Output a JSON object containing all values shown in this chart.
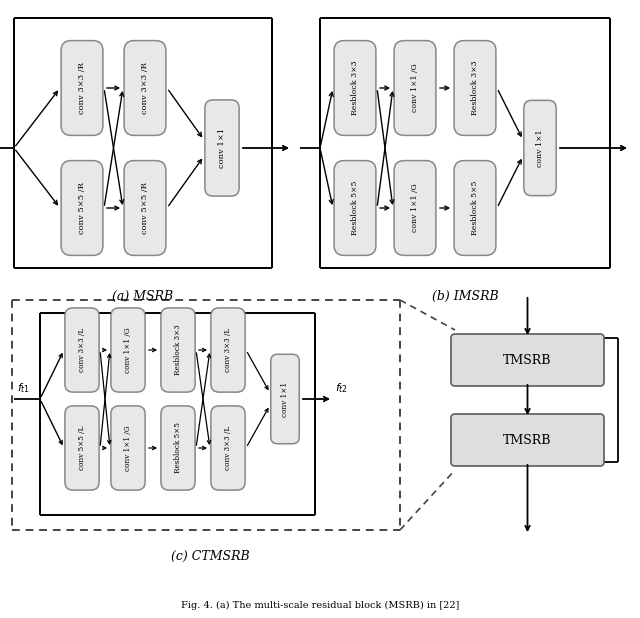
{
  "fig_width": 6.4,
  "fig_height": 6.18,
  "bg_color": "#ffffff",
  "box_fill": "#e8e8e8",
  "box_edge": "#888888",
  "caption_a": "(a) MSRB",
  "caption_b": "(b) IMSRB",
  "caption_c": "(c) CTMSRB",
  "footer": "Fig. 4. (a) The multi-scale residual block (MSRB) in [22]"
}
